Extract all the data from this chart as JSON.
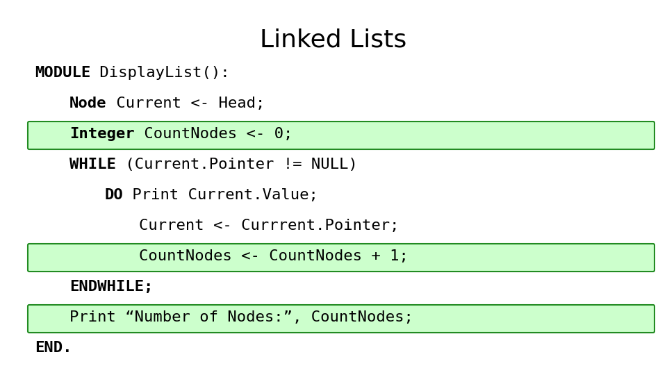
{
  "title": "Linked Lists",
  "title_fontsize": 26,
  "title_font": "DejaVu Sans",
  "title_weight": "normal",
  "bg_color": "#ffffff",
  "highlight_color": "#ccffcc",
  "highlight_border": "#228B22",
  "code_font": "DejaVu Sans Mono",
  "code_fontsize": 16,
  "lines": [
    {
      "text": "MODULE DisplayList():",
      "bold_prefix": "MODULE",
      "indent": 0,
      "highlight": false
    },
    {
      "text": "Node Current <- Head;",
      "bold_prefix": "Node",
      "indent": 1,
      "highlight": false
    },
    {
      "text": "Integer CountNodes <- 0;",
      "bold_prefix": "Integer",
      "indent": 1,
      "highlight": true
    },
    {
      "text": "WHILE (Current.Pointer != NULL)",
      "bold_prefix": "WHILE",
      "indent": 1,
      "highlight": false
    },
    {
      "text": "DO Print Current.Value;",
      "bold_prefix": "DO",
      "indent": 2,
      "highlight": false
    },
    {
      "text": "Current <- Currrent.Pointer;",
      "bold_prefix": "",
      "indent": 3,
      "highlight": false
    },
    {
      "text": "CountNodes <- CountNodes + 1;",
      "bold_prefix": "",
      "indent": 3,
      "highlight": true
    },
    {
      "text": "ENDWHILE;",
      "bold_prefix": "ENDWHILE;",
      "indent": 1,
      "highlight": false
    },
    {
      "text": "Print “Number of Nodes:”, CountNodes;",
      "bold_prefix": "",
      "indent": 1,
      "highlight": true
    },
    {
      "text": "END.",
      "bold_prefix": "END.",
      "indent": 0,
      "highlight": false
    }
  ]
}
